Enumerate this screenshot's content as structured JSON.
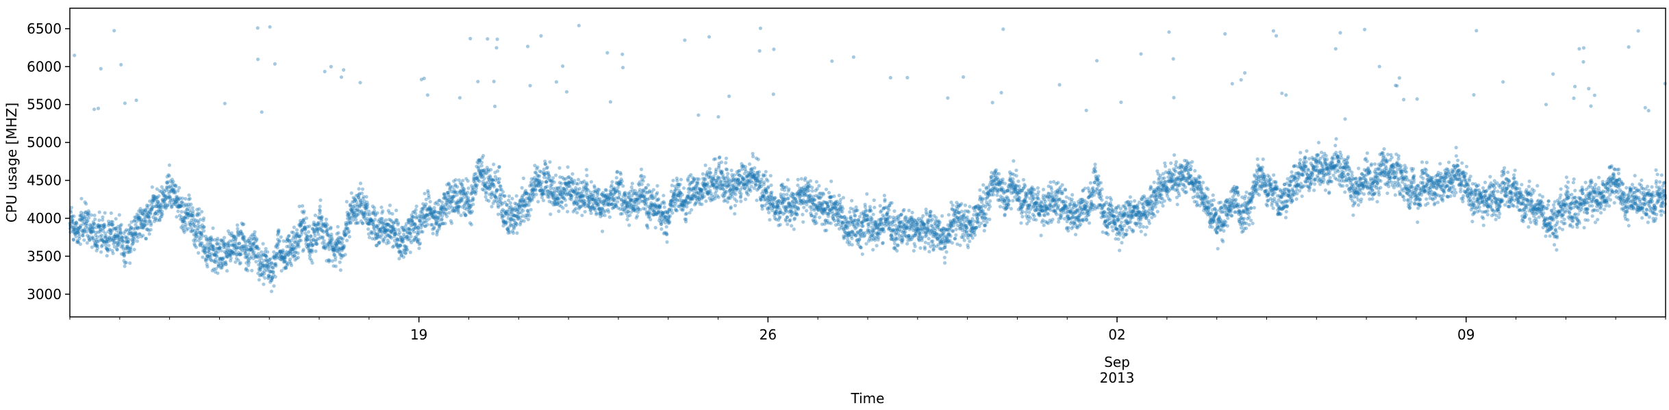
{
  "chart_data": {
    "type": "scatter",
    "xlabel": "Time",
    "ylabel": "CPU usage [MHZ]",
    "x_range": [
      "2013-08-12",
      "2013-09-13"
    ],
    "ylim": [
      2700,
      6770
    ],
    "grid": false,
    "legend": null,
    "marker_color": "#1f77b4",
    "marker_alpha": 0.4,
    "y_ticks": [
      3000,
      3500,
      4000,
      4500,
      5000,
      5500,
      6000,
      6500
    ],
    "x_major_ticks": [
      {
        "date": "2013-08-19",
        "label": "19"
      },
      {
        "date": "2013-08-26",
        "label": "26"
      },
      {
        "date": "2013-09-02",
        "label": "02"
      },
      {
        "date": "2013-09-09",
        "label": "09"
      }
    ],
    "x_secondary_label": {
      "date": "2013-09-02",
      "month": "Sep",
      "year": "2013"
    },
    "point_count_estimate": 8640,
    "trend": [
      {
        "date": "2013-08-12",
        "level": 3950
      },
      {
        "date": "2013-08-13",
        "level": 3700
      },
      {
        "date": "2013-08-14",
        "level": 4300
      },
      {
        "date": "2013-08-15",
        "level": 3650
      },
      {
        "date": "2013-08-16",
        "level": 3500
      },
      {
        "date": "2013-08-17",
        "level": 4000
      },
      {
        "date": "2013-08-18",
        "level": 3950
      },
      {
        "date": "2013-08-19",
        "level": 4050
      },
      {
        "date": "2013-08-20",
        "level": 4350
      },
      {
        "date": "2013-08-21",
        "level": 4150
      },
      {
        "date": "2013-08-22",
        "level": 4350
      },
      {
        "date": "2013-08-23",
        "level": 4450
      },
      {
        "date": "2013-08-24",
        "level": 4150
      },
      {
        "date": "2013-08-25",
        "level": 4400
      },
      {
        "date": "2013-08-26",
        "level": 4250
      },
      {
        "date": "2013-08-27",
        "level": 4200
      },
      {
        "date": "2013-08-28",
        "level": 3850
      },
      {
        "date": "2013-08-29",
        "level": 3800
      },
      {
        "date": "2013-08-30",
        "level": 3900
      },
      {
        "date": "2013-08-31",
        "level": 4350
      },
      {
        "date": "2013-09-01",
        "level": 4050
      },
      {
        "date": "2013-09-02",
        "level": 3950
      },
      {
        "date": "2013-09-03",
        "level": 4300
      },
      {
        "date": "2013-09-04",
        "level": 4250
      },
      {
        "date": "2013-09-05",
        "level": 4500
      },
      {
        "date": "2013-09-06",
        "level": 4650
      },
      {
        "date": "2013-09-07",
        "level": 4400
      },
      {
        "date": "2013-09-08",
        "level": 4350
      },
      {
        "date": "2013-09-09",
        "level": 4500
      },
      {
        "date": "2013-09-10",
        "level": 4250
      },
      {
        "date": "2013-09-11",
        "level": 4100
      },
      {
        "date": "2013-09-12",
        "level": 4300
      },
      {
        "date": "2013-09-13",
        "level": 4100
      }
    ]
  }
}
